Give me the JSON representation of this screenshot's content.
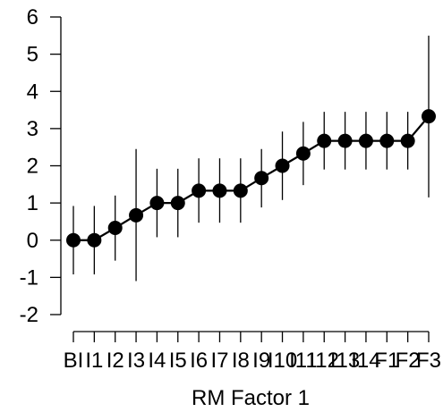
{
  "chart_data": {
    "type": "line",
    "title": "",
    "xlabel": "RM Factor 1",
    "ylabel": "",
    "categories": [
      "BI",
      "I1",
      "I2",
      "I3",
      "I4",
      "I5",
      "I6",
      "I7",
      "I8",
      "I9",
      "I10",
      "I11",
      "I12",
      "I13",
      "I14",
      "F1",
      "F2",
      "F3"
    ],
    "ylim": [
      -2,
      6
    ],
    "yticks": [
      "-2",
      "-1",
      "0",
      "1",
      "2",
      "3",
      "4",
      "5",
      "6"
    ],
    "grid": false,
    "legend": "none",
    "series": [
      {
        "values": [
          0,
          0,
          0.33,
          0.67,
          1.0,
          1.0,
          1.33,
          1.33,
          1.33,
          1.67,
          2.0,
          2.33,
          2.67,
          2.67,
          2.67,
          2.67,
          2.67,
          3.33
        ],
        "error_low": [
          -0.92,
          -0.92,
          -0.55,
          -1.1,
          0.08,
          0.08,
          0.47,
          0.47,
          0.47,
          0.88,
          1.08,
          1.48,
          1.9,
          1.9,
          1.9,
          1.9,
          1.9,
          1.15
        ],
        "error_high": [
          0.92,
          0.92,
          1.2,
          2.45,
          1.92,
          1.92,
          2.2,
          2.2,
          2.2,
          2.45,
          2.92,
          3.18,
          3.45,
          3.45,
          3.45,
          3.45,
          3.45,
          5.5
        ]
      }
    ],
    "colors": {
      "line": "#000000",
      "marker": "#000000",
      "error_bar": "#000000",
      "axis": "#000000"
    }
  }
}
